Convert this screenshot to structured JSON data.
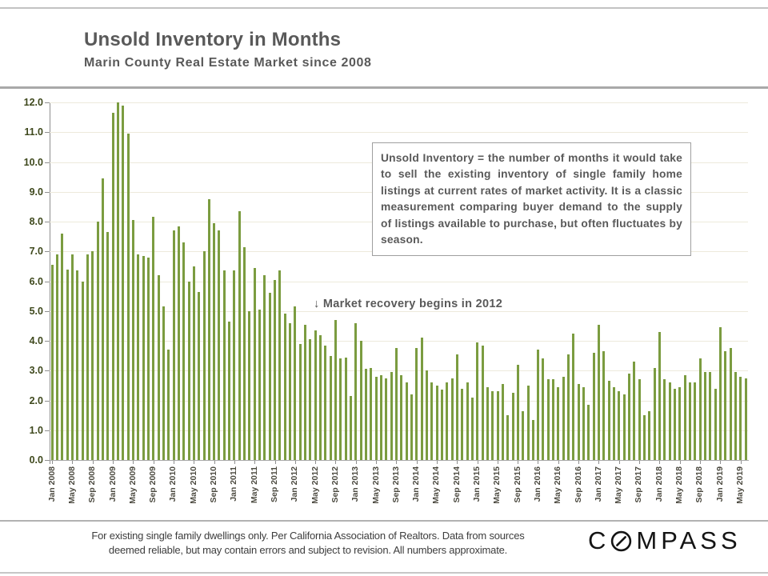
{
  "header": {
    "title": "Unsold Inventory in Months",
    "subtitle": "Marin County Real Estate Market since 2008"
  },
  "annotation_box": {
    "text": "Unsold Inventory = the number of months it would take to sell the existing inventory of single family home listings at current rates of market activity.  It is a classic measurement comparing buyer demand to the supply of listings available to purchase, but often fluctuates by season."
  },
  "annotation_arrow": {
    "text": "↓ Market recovery begins in 2012"
  },
  "footer": {
    "disclaimer_line1": "For existing single family dwellings only. Per California Association of Realtors. Data from sources",
    "disclaimer_line2": "deemed reliable, but may contain errors and subject to revision. All numbers approximate.",
    "logo_c": "C",
    "logo_rest": "MPASS",
    "logo_o_icon": "compass-needle-circle-icon"
  },
  "chart_data": {
    "type": "bar",
    "title": "Unsold Inventory in Months",
    "xlabel": "",
    "ylabel": "",
    "ylim": [
      0,
      12
    ],
    "y_tick_step": 1,
    "y_tick_labels": [
      "0.0",
      "1.0",
      "2.0",
      "3.0",
      "4.0",
      "5.0",
      "6.0",
      "7.0",
      "8.0",
      "9.0",
      "10.0",
      "11.0",
      "12.0"
    ],
    "grid": true,
    "bar_color": "#7b9c40",
    "start_month": "Jan 2008",
    "end_month": "Jun 2019",
    "x_tick_every_n_months": 4,
    "x_tick_labels": [
      "Jan 2008",
      "May 2008",
      "Sep 2008",
      "Jan 2009",
      "May 2009",
      "Sep 2009",
      "Jan 2010",
      "May 2010",
      "Sep 2010",
      "Jan 2011",
      "May 2011",
      "Sep 2011",
      "Jan 2012",
      "May 2012",
      "Sep 2012",
      "Jan 2013",
      "May 2013",
      "Sep 2013",
      "Jan 2014",
      "May 2014",
      "Sep 2014",
      "Jan 2015",
      "May 2015",
      "Sep 2015",
      "Jan 2016",
      "May 2016",
      "Sep 2016",
      "Jan 2017",
      "May 2017",
      "Sep 2017",
      "Jan 2018",
      "May 2018",
      "Sep 2018",
      "Jan 2019",
      "May 2019"
    ],
    "values": [
      6.55,
      6.9,
      7.6,
      6.4,
      6.9,
      6.35,
      6.0,
      6.9,
      7.0,
      8.0,
      9.45,
      7.65,
      11.65,
      12.0,
      11.9,
      10.95,
      8.05,
      6.9,
      6.85,
      6.8,
      8.15,
      6.2,
      5.15,
      3.7,
      7.7,
      7.85,
      7.3,
      6.0,
      6.5,
      5.65,
      7.0,
      8.75,
      7.95,
      7.7,
      6.35,
      4.65,
      6.35,
      8.35,
      7.15,
      5.0,
      6.45,
      5.05,
      6.2,
      5.6,
      6.05,
      6.35,
      4.9,
      4.6,
      5.15,
      3.9,
      4.55,
      4.05,
      4.35,
      4.2,
      3.85,
      3.5,
      4.7,
      3.4,
      3.45,
      2.15,
      4.6,
      4.0,
      3.05,
      3.1,
      2.8,
      2.85,
      2.75,
      2.95,
      3.75,
      2.85,
      2.6,
      2.2,
      3.75,
      4.1,
      3.0,
      2.6,
      2.5,
      2.35,
      2.6,
      2.75,
      3.55,
      2.4,
      2.6,
      2.1,
      3.95,
      3.85,
      2.45,
      2.3,
      2.3,
      2.55,
      1.5,
      2.25,
      3.2,
      1.65,
      2.5,
      1.35,
      3.7,
      3.4,
      2.7,
      2.7,
      2.45,
      2.8,
      3.55,
      4.25,
      2.55,
      2.45,
      1.85,
      3.6,
      4.55,
      3.65,
      2.65,
      2.45,
      2.3,
      2.2,
      2.9,
      3.3,
      2.7,
      1.5,
      1.65,
      3.1,
      4.3,
      2.7,
      2.6,
      2.4,
      2.45,
      2.85,
      2.6,
      2.6,
      3.4,
      2.95,
      2.95,
      2.4,
      4.45,
      3.65,
      3.75,
      2.95,
      2.8,
      2.75
    ]
  }
}
